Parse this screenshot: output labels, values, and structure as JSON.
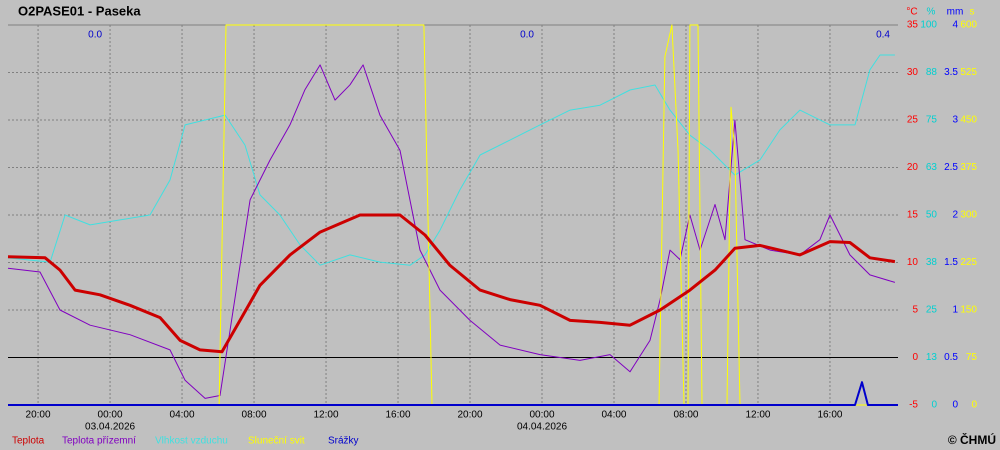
{
  "chart_data": {
    "type": "line",
    "title": "O2PASE01 - Paseka",
    "copyright": "© ČHMÚ",
    "xlim": [
      -5.67,
      43.78
    ],
    "xticks": [
      {
        "value": -4,
        "label": "20:00"
      },
      {
        "value": 0,
        "label": "00:00"
      },
      {
        "value": 4,
        "label": "04:00"
      },
      {
        "value": 8,
        "label": "08:00"
      },
      {
        "value": 12,
        "label": "12:00"
      },
      {
        "value": 16,
        "label": "16:00"
      },
      {
        "value": 20,
        "label": "20:00"
      },
      {
        "value": 24,
        "label": "00:00"
      },
      {
        "value": 28,
        "label": "04:00"
      },
      {
        "value": 32,
        "label": "08:00"
      },
      {
        "value": 36,
        "label": "12:00"
      },
      {
        "value": 40,
        "label": "16:00"
      }
    ],
    "dates": [
      {
        "value": 0,
        "label": "03.04.2026"
      },
      {
        "value": 24,
        "label": "04.04.2026"
      }
    ],
    "annotations": [
      {
        "x": 0,
        "text": "0.0"
      },
      {
        "x": 24,
        "text": "0.0"
      },
      {
        "x": 43.78,
        "text": "0.4"
      }
    ],
    "grid": true,
    "zero_line": true,
    "ylim": [
      -5,
      35
    ],
    "y_unit": "°C",
    "y_color": "#ff0000",
    "yticks": [
      35,
      30,
      25,
      20,
      15,
      10,
      5,
      0,
      -5
    ],
    "y2lim": [
      0,
      100
    ],
    "y2_unit": "%",
    "y2_color": "#00d0d0",
    "y2ticks": [
      100,
      {
        "value": 87.5,
        "label": "88"
      },
      75,
      {
        "value": 62.5,
        "label": "63"
      },
      50,
      {
        "value": 37.5,
        "label": "38"
      },
      25,
      {
        "value": 12.5,
        "label": "13"
      },
      0
    ],
    "y3lim": [
      0,
      4
    ],
    "y3_unit": "mm",
    "y3_color": "#0000ff",
    "y3ticks": [
      4,
      3.5,
      3,
      2.5,
      2,
      1.5,
      1,
      0.5,
      0
    ],
    "y4lim": [
      0,
      600
    ],
    "y4_unit": "s",
    "y4_color": "#ffff00",
    "y4ticks": [
      600,
      525,
      450,
      375,
      300,
      225,
      150,
      75,
      0
    ],
    "series": [
      {
        "name": "Teplota",
        "color": "#cc0000",
        "axis": "y",
        "x": [
          -5.67,
          -3.61,
          -2.78,
          -1.94,
          -0.56,
          1.11,
          2.78,
          3.89,
          5,
          6.22,
          7.22,
          8.33,
          10,
          11.67,
          13.89,
          16.11,
          17.5,
          18.89,
          20.56,
          22.22,
          23.89,
          25.56,
          27.22,
          28.89,
          30.56,
          32.22,
          33.61,
          34.72,
          36.11,
          38.33,
          40,
          41.11,
          42.22,
          43.61
        ],
        "values": [
          10.6,
          10.5,
          9.2,
          7.1,
          6.6,
          5.5,
          4.2,
          1.8,
          0.8,
          0.6,
          3.9,
          7.6,
          10.8,
          13.2,
          15,
          15,
          12.9,
          9.7,
          7.1,
          6.1,
          5.5,
          3.9,
          3.7,
          3.4,
          5,
          7.1,
          9.2,
          11.5,
          11.8,
          10.8,
          12.2,
          12.1,
          10.5,
          10.1
        ]
      },
      {
        "name": "Teplota přízemní",
        "color": "#8000c0",
        "axis": "y",
        "x": [
          -5.67,
          -3.89,
          -2.78,
          -1.11,
          1.11,
          3.33,
          4.17,
          5.28,
          6.11,
          6.67,
          7.78,
          8.89,
          10,
          10.83,
          11.67,
          12.5,
          13.33,
          14.06,
          15,
          16.11,
          17.22,
          18.33,
          20,
          21.67,
          23.89,
          26.11,
          27.78,
          28.89,
          30,
          30.56,
          31.11,
          31.67,
          32.22,
          32.78,
          33.61,
          34.17,
          34.72,
          35.28,
          36.67,
          38.33,
          39.44,
          40,
          41.11,
          42.22,
          43.61
        ],
        "values": [
          9.4,
          9,
          5,
          3.4,
          2.4,
          0.8,
          -2.4,
          -4.3,
          -4,
          2.9,
          16.6,
          20.8,
          24.5,
          28.2,
          30.8,
          27.1,
          28.7,
          30.8,
          25.5,
          21.8,
          11.3,
          7.1,
          3.9,
          1.3,
          0.3,
          -0.3,
          0.3,
          -1.5,
          1.8,
          6.1,
          11.3,
          10.3,
          15,
          11.3,
          16.1,
          12.4,
          25,
          12.4,
          11.3,
          10.8,
          12.4,
          15,
          10.8,
          8.7,
          7.9
        ]
      },
      {
        "name": "Vlhkost vzduchu",
        "color": "#40e0e0",
        "axis": "y2",
        "x": [
          -5.67,
          -3.33,
          -2.5,
          -1.11,
          0.56,
          2.22,
          3.33,
          4.17,
          5.28,
          6.39,
          7.5,
          8.33,
          9.44,
          10.56,
          11.67,
          13.33,
          15,
          16.67,
          17.5,
          18.33,
          19.44,
          20.56,
          22.22,
          23.89,
          25.56,
          27.22,
          28.89,
          30.28,
          31.11,
          32.22,
          33.33,
          34.72,
          36.11,
          37.22,
          38.33,
          40,
          41.39,
          42.22,
          42.78,
          43.61
        ],
        "values": [
          38.7,
          37.6,
          50,
          47.4,
          48.7,
          50,
          59.2,
          73.7,
          75,
          76.3,
          68.4,
          55.3,
          50,
          42.1,
          36.8,
          39.5,
          37.6,
          36.8,
          39.5,
          46,
          56.6,
          65.8,
          69.7,
          73.7,
          77.6,
          78.9,
          82.9,
          84.2,
          77.6,
          71,
          67.1,
          60.5,
          64.5,
          72.4,
          77.6,
          73.7,
          73.7,
          88.2,
          92.1,
          92.1
        ]
      },
      {
        "name": "Sluneční svit",
        "color": "#ffff00",
        "axis": "y4",
        "x": [
          -5.67,
          6.06,
          6.44,
          17.44,
          17.89,
          30.5,
          30.83,
          31.22,
          31.56,
          31.89,
          32.11,
          32.22,
          32.67,
          32.89,
          34.28,
          34.5,
          34.72,
          35,
          43.78
        ],
        "values": [
          0,
          0,
          600,
          600,
          0,
          0,
          550,
          600,
          400,
          0,
          0,
          600,
          600,
          0,
          0,
          470,
          400,
          0,
          0
        ]
      },
      {
        "name": "Srážky",
        "color": "#0000cc",
        "axis": "y3",
        "x": [
          -5.67,
          41.39,
          41.78,
          42.11,
          43.78
        ],
        "values": [
          0,
          0,
          0.24,
          0,
          0
        ]
      }
    ]
  }
}
